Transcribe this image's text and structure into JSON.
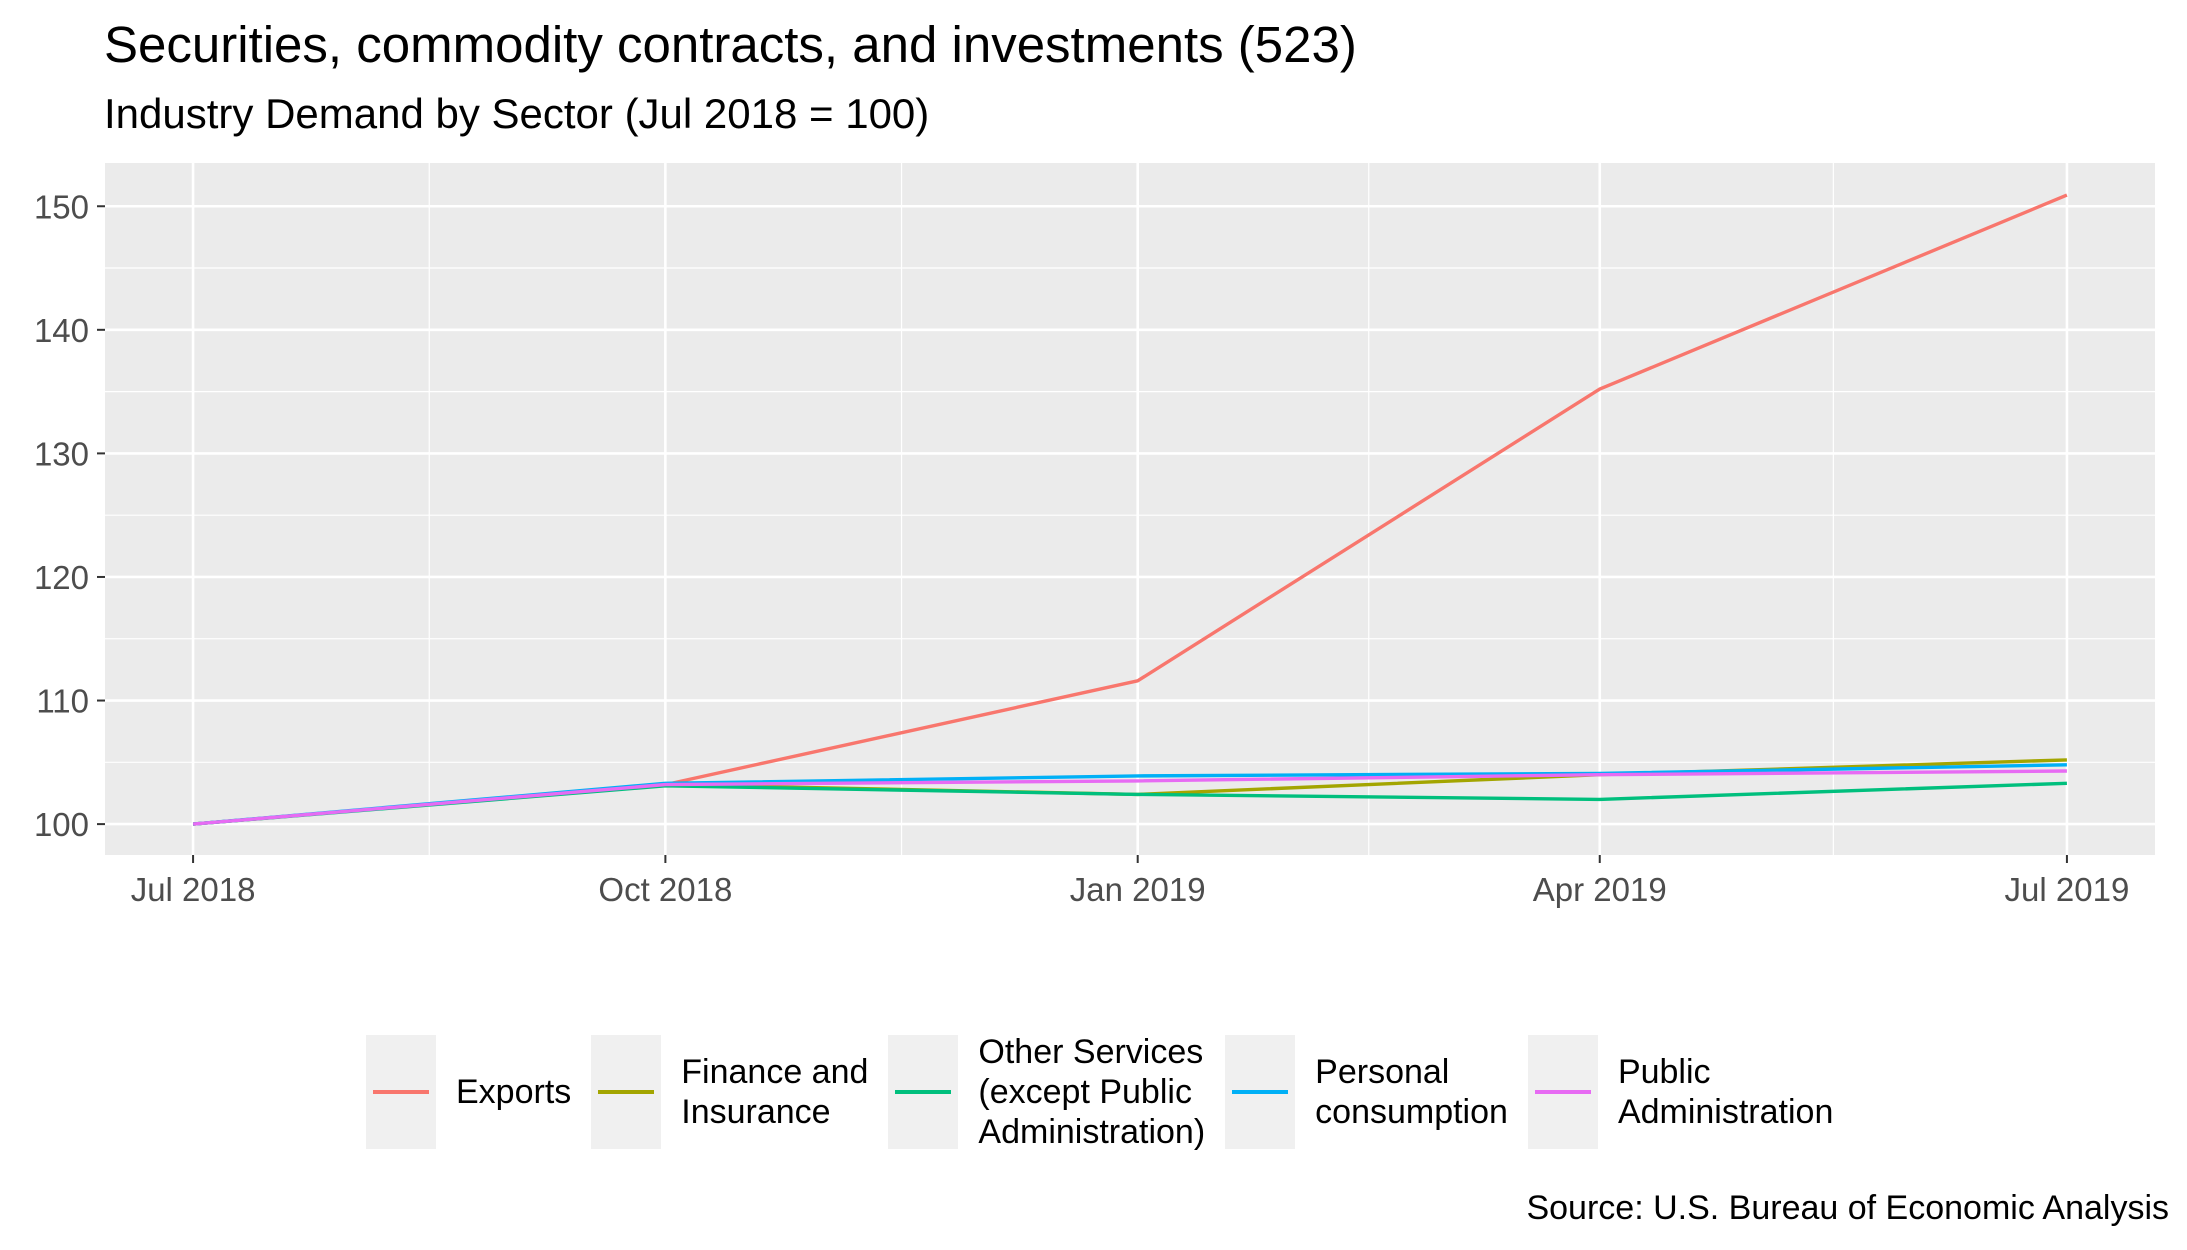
{
  "title": "Securities, commodity contracts, and investments (523)",
  "subtitle": "Industry Demand by Sector (Jul 2018 = 100)",
  "source": "Source: U.S. Bureau of Economic Analysis",
  "chart_data": {
    "type": "line",
    "title": "Securities, commodity contracts, and investments (523)",
    "subtitle": "Industry Demand by Sector (Jul 2018 = 100)",
    "x": [
      "2018-07-01",
      "2018-10-01",
      "2019-01-01",
      "2019-04-01",
      "2019-07-01"
    ],
    "x_tick_labels": [
      "Jul 2018",
      "Oct 2018",
      "Jan 2019",
      "Apr 2019",
      "Jul 2019"
    ],
    "y_ticks": [
      100,
      110,
      120,
      130,
      140,
      150
    ],
    "ylim": [
      97.5,
      153.5
    ],
    "xlabel": "",
    "ylabel": "",
    "grid": true,
    "legend_position": "bottom",
    "series": [
      {
        "name": "Exports",
        "color": "#F8766D",
        "values": [
          100,
          103.2,
          111.6,
          135.2,
          150.9
        ]
      },
      {
        "name": "Finance and\nInsurance",
        "color": "#A3A500",
        "values": [
          100,
          103.2,
          102.4,
          104.0,
          105.2
        ]
      },
      {
        "name": "Other Services\n(except Public\nAdministration)",
        "color": "#00BF7D",
        "values": [
          100,
          103.1,
          102.4,
          102.0,
          103.3
        ]
      },
      {
        "name": "Personal\nconsumption",
        "color": "#00B0F6",
        "values": [
          100,
          103.3,
          103.9,
          104.1,
          104.8
        ]
      },
      {
        "name": "Public\nAdministration",
        "color": "#E76BF3",
        "values": [
          100,
          103.2,
          103.5,
          104.0,
          104.3
        ]
      }
    ]
  }
}
